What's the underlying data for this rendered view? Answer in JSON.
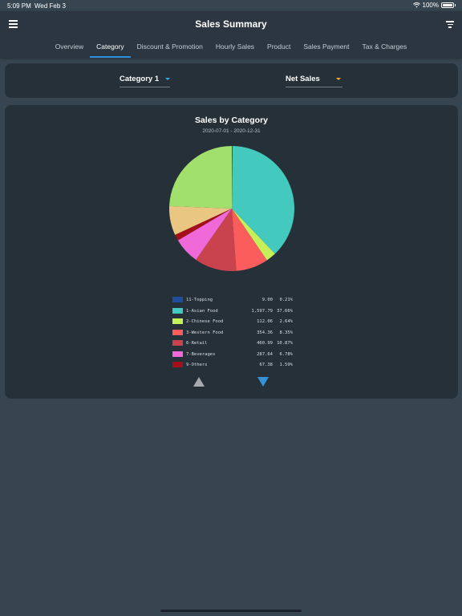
{
  "status": {
    "time": "5:09 PM",
    "date": "Wed Feb 3",
    "battery": "100%"
  },
  "header": {
    "title": "Sales Summary"
  },
  "tabs": [
    {
      "label": "Overview",
      "active": false
    },
    {
      "label": "Category",
      "active": true
    },
    {
      "label": "Discount & Promotion",
      "active": false
    },
    {
      "label": "Hourly Sales",
      "active": false
    },
    {
      "label": "Product",
      "active": false
    },
    {
      "label": "Sales Payment",
      "active": false
    },
    {
      "label": "Tax & Charges",
      "active": false
    }
  ],
  "selectors": {
    "category": "Category 1",
    "metric": "Net Sales"
  },
  "chart": {
    "title": "Sales by Category",
    "subtitle": "2020-07-01 - 2020-12-31"
  },
  "legend": [
    {
      "name": "11-Topping",
      "amount": "9.00",
      "percent": "0.21%",
      "color": "#1f4e9c"
    },
    {
      "name": "1-Asian Food",
      "amount": "1,597.79",
      "percent": "37.66%",
      "color": "#43c9bd"
    },
    {
      "name": "2-Chinese Food",
      "amount": "112.06",
      "percent": "2.64%",
      "color": "#c6f05a"
    },
    {
      "name": "3-Western Food",
      "amount": "354.36",
      "percent": "8.35%",
      "color": "#fb5d5d"
    },
    {
      "name": "6-Retail",
      "amount": "460.99",
      "percent": "10.87%",
      "color": "#c9434e"
    },
    {
      "name": "7-Beverages",
      "amount": "287.64",
      "percent": "6.78%",
      "color": "#ef6ad8"
    },
    {
      "name": "9-Others",
      "amount": "67.38",
      "percent": "1.59%",
      "color": "#a3101a"
    }
  ],
  "chart_data": {
    "type": "pie",
    "title": "Sales by Category",
    "subtitle": "2020-07-01 - 2020-12-31",
    "slices": [
      {
        "label": "11-Topping",
        "value": 0.21,
        "color": "#1f4e9c"
      },
      {
        "label": "1-Asian Food",
        "value": 37.66,
        "color": "#43c9bd"
      },
      {
        "label": "2-Chinese Food",
        "value": 2.64,
        "color": "#c6f05a"
      },
      {
        "label": "3-Western Food",
        "value": 8.35,
        "color": "#fb5d5d"
      },
      {
        "label": "6-Retail",
        "value": 10.87,
        "color": "#c9434e"
      },
      {
        "label": "7-Beverages",
        "value": 6.78,
        "color": "#ef6ad8"
      },
      {
        "label": "9-Others",
        "value": 1.59,
        "color": "#a3101a"
      },
      {
        "label": "",
        "value": 7.55,
        "color": "#e9c681"
      },
      {
        "label": "",
        "value": 24.35,
        "color": "#a1e06c"
      }
    ]
  },
  "colors": {
    "accent": "#2f8ed8",
    "metric_caret": "#ebac2a",
    "page_bg": "#36454f",
    "card_bg": "#263039"
  }
}
